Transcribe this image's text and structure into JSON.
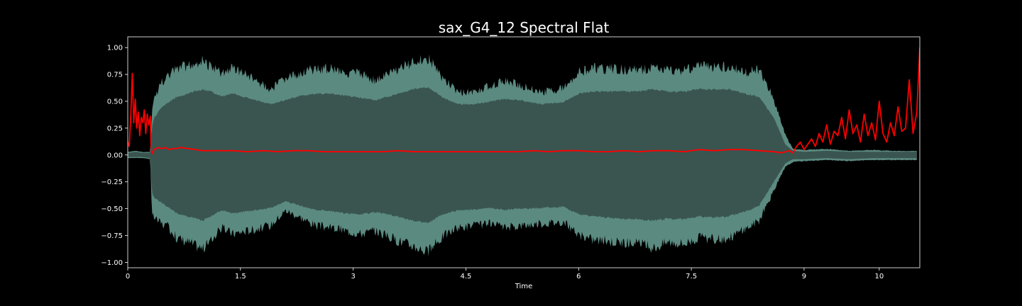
{
  "chart_data": {
    "type": "line",
    "title": "sax_G4_12 Spectral Flat",
    "xlabel": "Time",
    "ylabel": "",
    "xlim": [
      0,
      10.54
    ],
    "ylim": [
      -1.05,
      1.1
    ],
    "x_ticks": [
      0,
      1.5,
      3,
      4.5,
      6,
      7.5,
      9,
      10
    ],
    "x_tick_labels": [
      "0",
      "1.5",
      "3",
      "4.5",
      "6",
      "7.5",
      "9",
      "10"
    ],
    "y_ticks": [
      1.0,
      0.75,
      0.5,
      0.25,
      0.0,
      -0.25,
      -0.5,
      -0.75,
      -1.0
    ],
    "y_tick_labels": [
      "1.00",
      "0.75",
      "0.50",
      "0.25",
      "0.00",
      "−0.25",
      "−0.50",
      "−0.75",
      "−1.00"
    ],
    "grid": false,
    "colors": {
      "background": "#000000",
      "waveform": "#5b8a80",
      "waveform_inner": "#3a5550",
      "flatness": "#ff0000",
      "axes": "#ffffff"
    },
    "series": [
      {
        "kind": "waveform-envelope",
        "x": [
          0,
          0.1,
          0.2,
          0.3,
          0.32,
          0.35,
          0.45,
          0.55,
          0.65,
          0.8,
          1.0,
          1.1,
          1.25,
          1.4,
          1.6,
          1.9,
          2.1,
          2.3,
          2.5,
          2.7,
          2.9,
          3.1,
          3.3,
          3.6,
          3.8,
          4.0,
          4.2,
          4.4,
          4.6,
          4.8,
          5.0,
          5.2,
          5.5,
          5.8,
          6.0,
          6.2,
          6.5,
          6.8,
          7.0,
          7.2,
          7.4,
          7.6,
          7.8,
          8.0,
          8.2,
          8.4,
          8.6,
          8.75,
          8.85,
          9.0,
          9.3,
          9.6,
          9.9,
          10.2,
          10.5
        ],
        "upper": [
          0.03,
          0.04,
          0.03,
          0.03,
          0.45,
          0.55,
          0.72,
          0.78,
          0.86,
          0.88,
          0.93,
          0.88,
          0.8,
          0.86,
          0.78,
          0.65,
          0.75,
          0.82,
          0.85,
          0.86,
          0.82,
          0.8,
          0.73,
          0.85,
          0.92,
          0.96,
          0.75,
          0.62,
          0.62,
          0.68,
          0.73,
          0.7,
          0.62,
          0.66,
          0.82,
          0.86,
          0.85,
          0.84,
          0.86,
          0.83,
          0.84,
          0.88,
          0.87,
          0.88,
          0.82,
          0.85,
          0.55,
          0.2,
          0.06,
          0.05,
          0.06,
          0.04,
          0.05,
          0.04,
          0.04
        ],
        "lower": [
          -0.03,
          -0.03,
          -0.03,
          -0.04,
          -0.6,
          -0.62,
          -0.68,
          -0.72,
          -0.82,
          -0.86,
          -0.93,
          -0.85,
          -0.72,
          -0.78,
          -0.75,
          -0.7,
          -0.55,
          -0.62,
          -0.7,
          -0.72,
          -0.75,
          -0.78,
          -0.75,
          -0.85,
          -0.9,
          -0.96,
          -0.8,
          -0.72,
          -0.7,
          -0.68,
          -0.72,
          -0.7,
          -0.68,
          -0.66,
          -0.8,
          -0.84,
          -0.86,
          -0.88,
          -0.92,
          -0.86,
          -0.88,
          -0.82,
          -0.84,
          -0.82,
          -0.74,
          -0.65,
          -0.35,
          -0.12,
          -0.07,
          -0.06,
          -0.05,
          -0.06,
          -0.05,
          -0.05,
          -0.05
        ],
        "inner_upper": [
          0.02,
          0.03,
          0.02,
          0.02,
          0.25,
          0.35,
          0.45,
          0.5,
          0.55,
          0.58,
          0.62,
          0.6,
          0.55,
          0.58,
          0.54,
          0.48,
          0.52,
          0.56,
          0.58,
          0.58,
          0.56,
          0.54,
          0.52,
          0.58,
          0.62,
          0.64,
          0.54,
          0.48,
          0.48,
          0.5,
          0.53,
          0.52,
          0.48,
          0.5,
          0.58,
          0.6,
          0.6,
          0.6,
          0.62,
          0.6,
          0.6,
          0.62,
          0.62,
          0.62,
          0.58,
          0.55,
          0.35,
          0.1,
          0.04,
          0.03,
          0.04,
          0.03,
          0.03,
          0.03,
          0.03
        ],
        "inner_lower": [
          -0.02,
          -0.02,
          -0.02,
          -0.03,
          -0.35,
          -0.4,
          -0.45,
          -0.5,
          -0.55,
          -0.58,
          -0.62,
          -0.58,
          -0.52,
          -0.55,
          -0.53,
          -0.5,
          -0.44,
          -0.48,
          -0.52,
          -0.53,
          -0.55,
          -0.56,
          -0.54,
          -0.58,
          -0.62,
          -0.64,
          -0.56,
          -0.52,
          -0.52,
          -0.5,
          -0.52,
          -0.51,
          -0.5,
          -0.49,
          -0.56,
          -0.58,
          -0.6,
          -0.61,
          -0.62,
          -0.6,
          -0.61,
          -0.58,
          -0.59,
          -0.58,
          -0.54,
          -0.48,
          -0.25,
          -0.08,
          -0.04,
          -0.04,
          -0.03,
          -0.04,
          -0.03,
          -0.03,
          -0.03
        ]
      },
      {
        "kind": "spectral-flatness",
        "x": [
          0,
          0.02,
          0.04,
          0.06,
          0.08,
          0.1,
          0.12,
          0.14,
          0.16,
          0.18,
          0.2,
          0.22,
          0.24,
          0.26,
          0.28,
          0.3,
          0.31,
          0.32,
          0.35,
          0.4,
          0.45,
          0.5,
          0.55,
          0.6,
          0.65,
          0.7,
          0.8,
          0.9,
          1.0,
          1.2,
          1.4,
          1.6,
          1.8,
          2.0,
          2.2,
          2.4,
          2.6,
          2.8,
          3.0,
          3.2,
          3.4,
          3.6,
          3.8,
          4.0,
          4.2,
          4.4,
          4.6,
          4.8,
          5.0,
          5.2,
          5.4,
          5.6,
          5.8,
          6.0,
          6.2,
          6.4,
          6.6,
          6.8,
          7.0,
          7.2,
          7.4,
          7.6,
          7.8,
          8.0,
          8.2,
          8.4,
          8.6,
          8.7,
          8.8,
          8.85,
          8.9,
          8.95,
          9.0,
          9.05,
          9.1,
          9.15,
          9.2,
          9.25,
          9.3,
          9.35,
          9.4,
          9.45,
          9.5,
          9.55,
          9.6,
          9.65,
          9.7,
          9.75,
          9.8,
          9.85,
          9.9,
          9.95,
          10.0,
          10.05,
          10.1,
          10.15,
          10.2,
          10.25,
          10.3,
          10.35,
          10.4,
          10.45,
          10.5,
          10.54
        ],
        "y": [
          0.12,
          0.08,
          0.35,
          0.76,
          0.3,
          0.52,
          0.25,
          0.4,
          0.18,
          0.35,
          0.3,
          0.42,
          0.2,
          0.38,
          0.28,
          0.36,
          0.1,
          0.01,
          0.05,
          0.07,
          0.06,
          0.07,
          0.05,
          0.06,
          0.06,
          0.07,
          0.06,
          0.05,
          0.04,
          0.04,
          0.04,
          0.03,
          0.04,
          0.03,
          0.04,
          0.04,
          0.03,
          0.03,
          0.03,
          0.03,
          0.03,
          0.04,
          0.03,
          0.03,
          0.03,
          0.03,
          0.03,
          0.03,
          0.03,
          0.03,
          0.04,
          0.03,
          0.04,
          0.04,
          0.03,
          0.03,
          0.04,
          0.03,
          0.04,
          0.04,
          0.03,
          0.05,
          0.04,
          0.05,
          0.05,
          0.04,
          0.03,
          0.02,
          0.04,
          0.02,
          0.08,
          0.12,
          0.05,
          0.1,
          0.15,
          0.08,
          0.2,
          0.12,
          0.28,
          0.1,
          0.22,
          0.18,
          0.35,
          0.15,
          0.42,
          0.2,
          0.28,
          0.12,
          0.38,
          0.18,
          0.3,
          0.14,
          0.5,
          0.2,
          0.12,
          0.3,
          0.18,
          0.45,
          0.22,
          0.25,
          0.7,
          0.2,
          0.4,
          1.0
        ]
      }
    ]
  }
}
